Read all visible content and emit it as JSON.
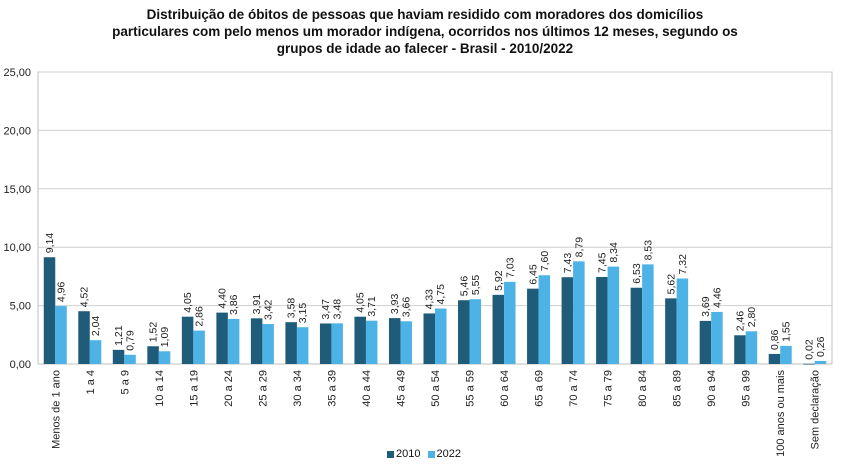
{
  "chart_data": {
    "type": "bar",
    "title": "Distribuição de óbitos de pessoas que haviam residido com moradores dos domicílios\nparticulares com pelo menos um morador indígena, ocorridos nos últimos 12 meses, segundo os\ngrupos de idade ao falecer   - Brasil - 2010/2022",
    "xlabel": "",
    "ylabel": "",
    "ylim": [
      0,
      25
    ],
    "yticks": [
      "0,00",
      "5,00",
      "10,00",
      "15,00",
      "20,00",
      "25,00"
    ],
    "grid": true,
    "legend_position": "bottom",
    "categories": [
      "Menos de 1 ano",
      "1 a 4",
      "5 a 9",
      "10 a 14",
      "15 a 19",
      "20 a 24",
      "25 a 29",
      "30 a 34",
      "35 a 39",
      "40 a 44",
      "45 a 49",
      "50 a 54",
      "55 a 59",
      "60 a 64",
      "65 a 69",
      "70 a 74",
      "75 a 79",
      "80 a 84",
      "85 a 89",
      "90 a 94",
      "95 a 99",
      "100 anos ou mais",
      "Sem declaração"
    ],
    "series": [
      {
        "name": "2010",
        "color": "#1F5C7A",
        "values": [
          9.14,
          4.52,
          1.21,
          1.52,
          4.05,
          4.4,
          3.91,
          3.58,
          3.47,
          4.05,
          3.93,
          4.33,
          5.46,
          5.92,
          6.45,
          7.43,
          7.45,
          6.53,
          5.62,
          3.69,
          2.46,
          0.86,
          0.02
        ],
        "labels": [
          "9,14",
          "4,52",
          "1,21",
          "1,52",
          "4,05",
          "4,40",
          "3,91",
          "3,58",
          "3,47",
          "4,05",
          "3,93",
          "4,33",
          "5,46",
          "5,92",
          "6,45",
          "7,43",
          "7,45",
          "6,53",
          "5,62",
          "3,69",
          "2,46",
          "0,86",
          "0,02"
        ]
      },
      {
        "name": "2022",
        "color": "#4DB3E6",
        "values": [
          4.96,
          2.04,
          0.79,
          1.09,
          2.86,
          3.86,
          3.42,
          3.15,
          3.48,
          3.71,
          3.66,
          4.75,
          5.55,
          7.03,
          7.6,
          8.79,
          8.34,
          8.53,
          7.32,
          4.46,
          2.8,
          1.55,
          0.26
        ],
        "labels": [
          "4,96",
          "2,04",
          "0,79",
          "1,09",
          "2,86",
          "3,86",
          "3,42",
          "3,15",
          "3,48",
          "3,71",
          "3,66",
          "4,75",
          "5,55",
          "7,03",
          "7,60",
          "8,79",
          "8,34",
          "8,53",
          "7,32",
          "4,46",
          "2,80",
          "1,55",
          "0,26"
        ]
      }
    ]
  }
}
